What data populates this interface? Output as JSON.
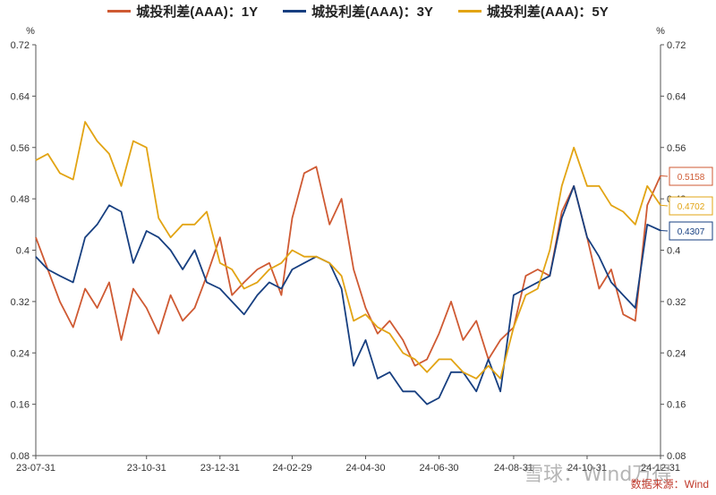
{
  "chart_data": {
    "type": "line",
    "y_unit_left": "%",
    "y_unit_right": "%",
    "ylim": [
      0.08,
      0.72
    ],
    "y_ticks": [
      "0.08",
      "0.16",
      "0.24",
      "0.32",
      "0.4",
      "0.48",
      "0.56",
      "0.64",
      "0.72"
    ],
    "x_ticks": [
      "23-07-31",
      "23-10-31",
      "23-12-31",
      "24-02-29",
      "24-04-30",
      "24-06-30",
      "24-08-31",
      "24-10-31",
      "24-12-31"
    ],
    "x_tick_dates": [
      "2023-07-31",
      "2023-10-31",
      "2023-12-31",
      "2024-02-29",
      "2024-04-30",
      "2024-06-30",
      "2024-08-31",
      "2024-10-31",
      "2024-12-31"
    ],
    "x": [
      "2023-07-31",
      "2023-08-10",
      "2023-08-20",
      "2023-08-31",
      "2023-09-10",
      "2023-09-20",
      "2023-09-30",
      "2023-10-10",
      "2023-10-20",
      "2023-10-31",
      "2023-11-10",
      "2023-11-20",
      "2023-11-30",
      "2023-12-10",
      "2023-12-20",
      "2023-12-31",
      "2024-01-10",
      "2024-01-20",
      "2024-01-31",
      "2024-02-10",
      "2024-02-20",
      "2024-02-29",
      "2024-03-10",
      "2024-03-20",
      "2024-03-31",
      "2024-04-10",
      "2024-04-20",
      "2024-04-30",
      "2024-05-10",
      "2024-05-20",
      "2024-05-31",
      "2024-06-10",
      "2024-06-20",
      "2024-06-30",
      "2024-07-10",
      "2024-07-20",
      "2024-07-31",
      "2024-08-10",
      "2024-08-20",
      "2024-08-31",
      "2024-09-10",
      "2024-09-20",
      "2024-09-30",
      "2024-10-10",
      "2024-10-20",
      "2024-10-31",
      "2024-11-10",
      "2024-11-20",
      "2024-11-30",
      "2024-12-10",
      "2024-12-20",
      "2024-12-31"
    ],
    "series": [
      {
        "name": "城投利差(AAA)：1Y",
        "color": "#cf5a33",
        "values": [
          0.42,
          0.37,
          0.32,
          0.28,
          0.34,
          0.31,
          0.35,
          0.26,
          0.34,
          0.31,
          0.27,
          0.33,
          0.29,
          0.31,
          0.36,
          0.42,
          0.33,
          0.35,
          0.37,
          0.38,
          0.33,
          0.45,
          0.52,
          0.53,
          0.44,
          0.48,
          0.37,
          0.31,
          0.27,
          0.29,
          0.26,
          0.22,
          0.23,
          0.27,
          0.32,
          0.26,
          0.29,
          0.23,
          0.26,
          0.28,
          0.36,
          0.37,
          0.36,
          0.46,
          0.5,
          0.42,
          0.34,
          0.37,
          0.3,
          0.29,
          0.47,
          0.5158
        ]
      },
      {
        "name": "城投利差(AAA)：3Y",
        "color": "#173f80",
        "values": [
          0.39,
          0.37,
          0.36,
          0.35,
          0.42,
          0.44,
          0.47,
          0.46,
          0.38,
          0.43,
          0.42,
          0.4,
          0.37,
          0.4,
          0.35,
          0.34,
          0.32,
          0.3,
          0.33,
          0.35,
          0.34,
          0.37,
          0.38,
          0.39,
          0.38,
          0.34,
          0.22,
          0.26,
          0.2,
          0.21,
          0.18,
          0.18,
          0.16,
          0.17,
          0.21,
          0.21,
          0.18,
          0.23,
          0.18,
          0.33,
          0.34,
          0.35,
          0.36,
          0.45,
          0.5,
          0.42,
          0.39,
          0.35,
          0.33,
          0.31,
          0.44,
          0.4307
        ]
      },
      {
        "name": "城投利差(AAA)：5Y",
        "color": "#e2a414",
        "values": [
          0.54,
          0.55,
          0.52,
          0.51,
          0.6,
          0.57,
          0.55,
          0.5,
          0.57,
          0.56,
          0.45,
          0.42,
          0.44,
          0.44,
          0.46,
          0.38,
          0.37,
          0.34,
          0.35,
          0.37,
          0.38,
          0.4,
          0.39,
          0.39,
          0.38,
          0.36,
          0.29,
          0.3,
          0.28,
          0.27,
          0.24,
          0.23,
          0.21,
          0.23,
          0.23,
          0.21,
          0.2,
          0.22,
          0.2,
          0.28,
          0.33,
          0.34,
          0.4,
          0.5,
          0.56,
          0.5,
          0.5,
          0.47,
          0.46,
          0.44,
          0.5,
          0.4702
        ]
      }
    ],
    "end_labels": [
      "0.5158",
      "0.4702",
      "0.4307"
    ]
  },
  "watermark": "雪球：Wind万得",
  "source": "数据来源：Wind"
}
